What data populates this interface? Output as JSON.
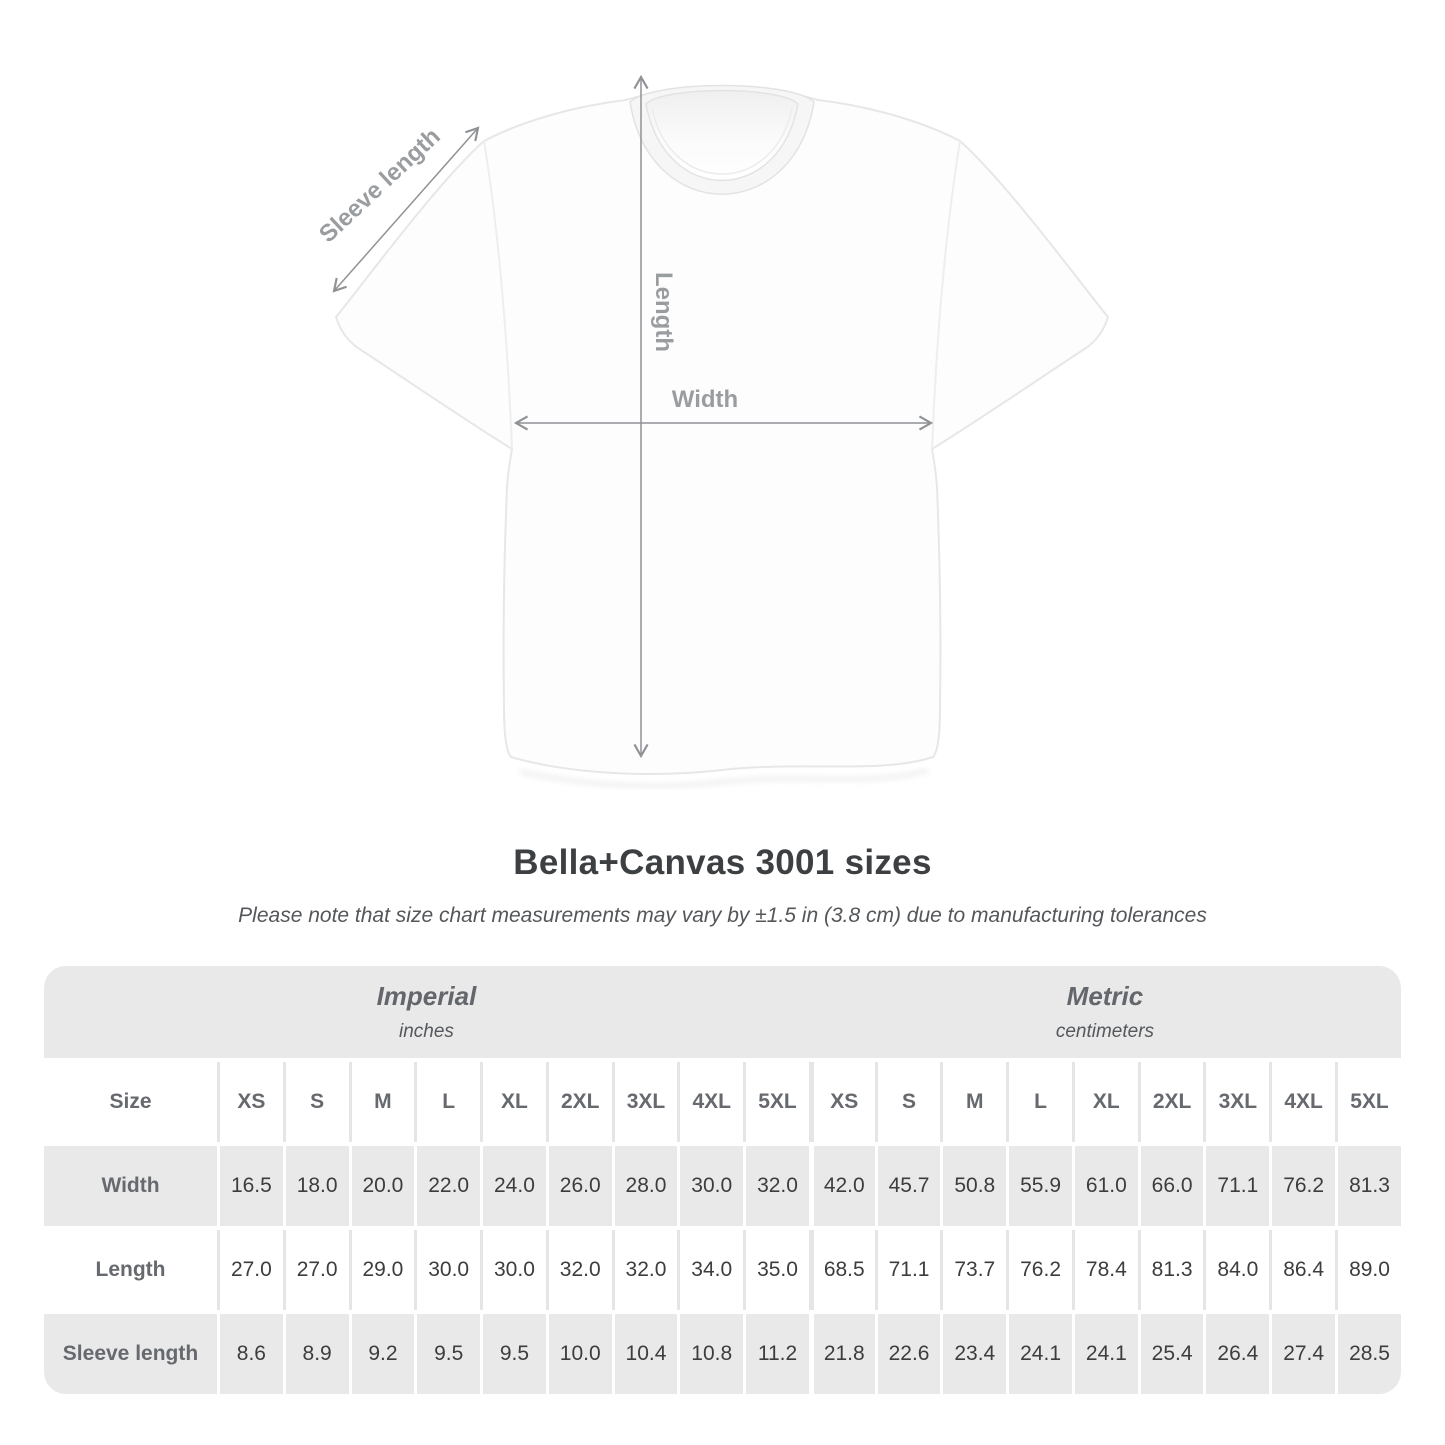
{
  "figure": {
    "labels": {
      "sleeve": "Sleeve length",
      "length": "Length",
      "width": "Width"
    }
  },
  "title": "Bella+Canvas 3001 sizes",
  "subtitle": "Please note that size chart measurements may vary by ±1.5 in (3.8 cm) due to manufacturing tolerances",
  "table": {
    "sections": [
      {
        "name": "Imperial",
        "unit": "inches"
      },
      {
        "name": "Metric",
        "unit": "centimeters"
      }
    ],
    "size_label": "Size",
    "sizes": [
      "XS",
      "S",
      "M",
      "L",
      "XL",
      "2XL",
      "3XL",
      "4XL",
      "5XL"
    ],
    "rows": [
      {
        "label": "Width",
        "imperial": [
          "16.5",
          "18.0",
          "20.0",
          "22.0",
          "24.0",
          "26.0",
          "28.0",
          "30.0",
          "32.0"
        ],
        "metric": [
          "42.0",
          "45.7",
          "50.8",
          "55.9",
          "61.0",
          "66.0",
          "71.1",
          "76.2",
          "81.3"
        ]
      },
      {
        "label": "Length",
        "imperial": [
          "27.0",
          "27.0",
          "29.0",
          "30.0",
          "30.0",
          "32.0",
          "32.0",
          "34.0",
          "35.0"
        ],
        "metric": [
          "68.5",
          "71.1",
          "73.7",
          "76.2",
          "78.4",
          "81.3",
          "84.0",
          "86.4",
          "89.0"
        ]
      },
      {
        "label": "Sleeve length",
        "imperial": [
          "8.6",
          "8.9",
          "9.2",
          "9.5",
          "9.5",
          "10.0",
          "10.4",
          "10.8",
          "11.2"
        ],
        "metric": [
          "21.8",
          "22.6",
          "23.4",
          "24.1",
          "24.1",
          "25.4",
          "26.4",
          "27.4",
          "28.5"
        ]
      }
    ]
  },
  "chart_data": {
    "type": "table",
    "title": "Bella+Canvas 3001 sizes",
    "columns": [
      "XS",
      "S",
      "M",
      "L",
      "XL",
      "2XL",
      "3XL",
      "4XL",
      "5XL"
    ],
    "series": [
      {
        "name": "Width (inches)",
        "values": [
          16.5,
          18.0,
          20.0,
          22.0,
          24.0,
          26.0,
          28.0,
          30.0,
          32.0
        ]
      },
      {
        "name": "Length (inches)",
        "values": [
          27.0,
          27.0,
          29.0,
          30.0,
          30.0,
          32.0,
          32.0,
          34.0,
          35.0
        ]
      },
      {
        "name": "Sleeve length (inches)",
        "values": [
          8.6,
          8.9,
          9.2,
          9.5,
          9.5,
          10.0,
          10.4,
          10.8,
          11.2
        ]
      },
      {
        "name": "Width (cm)",
        "values": [
          42.0,
          45.7,
          50.8,
          55.9,
          61.0,
          66.0,
          71.1,
          76.2,
          81.3
        ]
      },
      {
        "name": "Length (cm)",
        "values": [
          68.5,
          71.1,
          73.7,
          76.2,
          78.4,
          81.3,
          84.0,
          86.4,
          89.0
        ]
      },
      {
        "name": "Sleeve length (cm)",
        "values": [
          21.8,
          22.6,
          23.4,
          24.1,
          24.1,
          25.4,
          26.4,
          27.4,
          28.5
        ]
      }
    ]
  },
  "colors": {
    "table_band": "#e9e9e9",
    "header_text": "#66696e",
    "value_text": "#3b3d3f",
    "title_text": "#3d4043",
    "annotation_text": "#9a9da0",
    "arrow": "#8f9295"
  }
}
